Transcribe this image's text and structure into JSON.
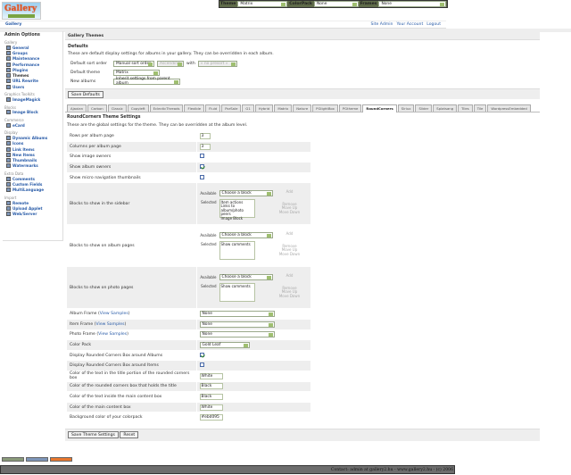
{
  "header": {
    "logo_text": "Gallery",
    "breadcrumb": "Gallery",
    "links": [
      "Site Admin",
      "Your Account",
      "Logout"
    ]
  },
  "topbar": {
    "theme_label": "Theme",
    "theme_value": "Matrix",
    "colorpack_label": "ColorPack",
    "colorpack_value": "None",
    "frames_label": "Frames",
    "frames_value": "None"
  },
  "sidebar": {
    "title": "Admin Options",
    "groups": [
      {
        "label": "Gallery",
        "items": [
          "General",
          "Groups",
          "Maintenance",
          "Performance",
          "Plugins",
          "Themes",
          "URL Rewrite",
          "Users"
        ]
      },
      {
        "label": "Graphics Toolkits",
        "items": [
          "ImageMagick"
        ]
      },
      {
        "label": "Blocks",
        "items": [
          "Image Block"
        ]
      },
      {
        "label": "Commerce",
        "items": [
          "eCard"
        ]
      },
      {
        "label": "Display",
        "items": [
          "Dynamic Albums",
          "Icons",
          "Link Items",
          "New Items",
          "Thumbnails",
          "Watermarks"
        ]
      },
      {
        "label": "Extra Data",
        "items": [
          "Comments",
          "Custom Fields",
          "MultiLanguage"
        ]
      },
      {
        "label": "Import",
        "items": [
          "Remote",
          "Upload Applet",
          "Web/Server"
        ]
      }
    ],
    "current": "Themes"
  },
  "main": {
    "title": "Gallery Themes",
    "defaults": {
      "title": "Defaults",
      "description": "These are default display settings for albums in your gallery. They can be overridden in each album.",
      "sort_label": "Default sort order",
      "sort_value": "Manual sort order",
      "direction_value": "Ascending",
      "with_label": "with",
      "presort_value": "« no presort »",
      "theme_label": "Default theme",
      "theme_value": "Matrix",
      "new_albums_label": "New albums",
      "new_albums_value": "Inherit settings from parent album",
      "save_label": "Save Defaults"
    },
    "tabs": [
      "Ajaxian",
      "Carbon",
      "Classic",
      "Copyleft",
      "EclecticThreads",
      "Flexible",
      "Fluid",
      "PorSale",
      "G1",
      "Hybrid",
      "Matrix",
      "Nature",
      "PGlightBox",
      "PGtheme",
      "RoundCorners",
      "Siriux",
      "Slider",
      "Splatsang",
      "Tiles",
      "Tile",
      "WordpressEmbedded"
    ],
    "active_tab": "RoundCorners",
    "settings": {
      "title": "RoundCorners Theme Settings",
      "description": "These are the global settings for the theme. They can be overridden at the album level.",
      "rows": [
        {
          "label": "Rows per album page",
          "type": "text",
          "value": "3"
        },
        {
          "label": "Columns per album page",
          "type": "text",
          "value": "3"
        },
        {
          "label": "Show image owners",
          "type": "checkbox",
          "checked": false
        },
        {
          "label": "Show album owners",
          "type": "checkbox",
          "checked": true
        },
        {
          "label": "Show micro navigation thumbnails",
          "type": "checkbox",
          "checked": false
        }
      ],
      "block_labels": {
        "available": "Available",
        "selected": "Selected",
        "choose": "Choose a block",
        "add": "Add",
        "remove": "Remove",
        "move_up": "Move Up",
        "move_down": "Move Down"
      },
      "blocks": [
        {
          "label": "Blocks to show in the sidebar",
          "selected": [
            "Item actions",
            "Links to album/photo peers",
            "Image Block"
          ]
        },
        {
          "label": "Blocks to show on album pages",
          "selected": [
            "Show comments"
          ]
        },
        {
          "label": "Blocks to show on photo pages",
          "selected": [
            "Show comments"
          ]
        }
      ],
      "view_samples": "View Samples",
      "rows2": [
        {
          "label": "Album Frame",
          "samples": true,
          "type": "select",
          "value": "None"
        },
        {
          "label": "Item Frame",
          "samples": true,
          "type": "select",
          "value": "None"
        },
        {
          "label": "Photo Frame",
          "samples": true,
          "type": "select",
          "value": "None"
        },
        {
          "label": "Color Pack",
          "type": "select-short",
          "value": "Gold Leaf"
        },
        {
          "label": "Display Rounded Corners Box around Albums",
          "type": "checkbox",
          "checked": true
        },
        {
          "label": "Display Rounded Corners Box around Items",
          "type": "checkbox",
          "checked": false
        },
        {
          "label": "Color of the text in the title portion of the rounded corners box",
          "type": "text",
          "value": "White"
        },
        {
          "label": "Color of the rounded corners box that holds the title",
          "type": "text",
          "value": "Black"
        },
        {
          "label": "Color of the text inside the main content box",
          "type": "text",
          "value": "Black"
        },
        {
          "label": "Color of the main content box",
          "type": "text",
          "value": "White"
        },
        {
          "label": "Background color of your colorpack",
          "type": "text",
          "value": "#ebd095"
        }
      ],
      "save_label": "Save Theme Settings",
      "reset_label": "Reset"
    }
  },
  "footer": {
    "text": "Contact: admin at gallery2.hu - www.gallery2.hu - (c) 2006"
  },
  "colors": {
    "topbar": "#5f6b49",
    "link": "#2a5ca8",
    "panel": "#eeeeee",
    "footer": "#6d6d6d"
  }
}
